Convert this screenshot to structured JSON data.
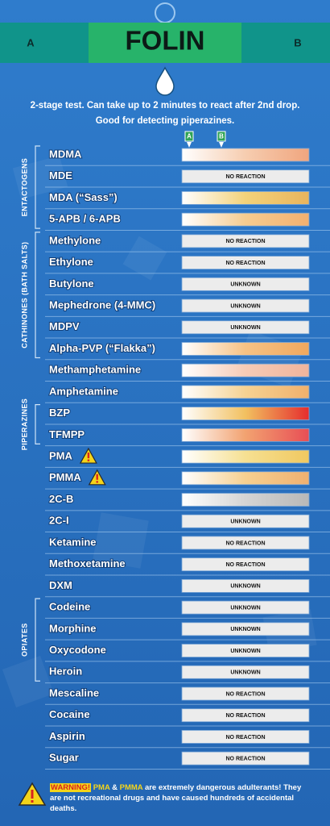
{
  "header": {
    "left": "A",
    "title": "FOLIN",
    "right": "B"
  },
  "instructions": [
    "2-stage test. Can take up to 2 minutes to react after 2nd drop.",
    "Good for detecting piperazines."
  ],
  "columns": [
    "A",
    "B"
  ],
  "sections": [
    {
      "label": "ENTACTOGENS",
      "rows": [
        {
          "name": "MDMA",
          "colors": [
            "#ffffff",
            "#f6cdb0",
            "#f0a57e"
          ]
        },
        {
          "name": "MDE",
          "result": "NO REACTION"
        },
        {
          "name": "MDA (“Sass”)",
          "colors": [
            "#ffffff",
            "#f3d27a",
            "#e9b45c"
          ]
        },
        {
          "name": "5-APB / 6-APB",
          "colors": [
            "#ffffff",
            "#f6cc90",
            "#f2b070"
          ]
        }
      ]
    },
    {
      "label": "CATHINONES (BATH SALTS)",
      "rows": [
        {
          "name": "Methylone",
          "result": "NO REACTION"
        },
        {
          "name": "Ethylone",
          "result": "NO REACTION"
        },
        {
          "name": "Butylone",
          "result": "UNKNOWN"
        },
        {
          "name": "Mephedrone (4-MMC)",
          "result": "UNKNOWN"
        },
        {
          "name": "MDPV",
          "result": "UNKNOWN"
        },
        {
          "name": "Alpha-PVP (“Flakka”)",
          "colors": [
            "#ffffff",
            "#f6c284",
            "#f0a85e"
          ]
        }
      ]
    },
    {
      "rows": [
        {
          "name": "Methamphetamine",
          "colors": [
            "#ffffff",
            "#f6cbb6",
            "#f0b49c"
          ]
        },
        {
          "name": "Amphetamine",
          "colors": [
            "#ffffff",
            "#f6d292",
            "#f0b06c"
          ]
        }
      ]
    },
    {
      "label": "PIPERAZINES",
      "rows": [
        {
          "name": "BZP",
          "colors": [
            "#ffffff",
            "#f2c060",
            "#e52d2d"
          ]
        },
        {
          "name": "TFMPP",
          "colors": [
            "#ffffff",
            "#f2a270",
            "#e84e55"
          ]
        }
      ]
    },
    {
      "rows": [
        {
          "name": "PMA",
          "warning": true,
          "colors": [
            "#ffffff",
            "#f6e092",
            "#f0c860"
          ]
        },
        {
          "name": "PMMA",
          "warning": true,
          "colors": [
            "#ffffff",
            "#f6d090",
            "#f0b070"
          ]
        },
        {
          "name": "2C-B",
          "colors": [
            "#ffffff",
            "#d4d4d4",
            "#b8b8b8"
          ]
        },
        {
          "name": "2C-I",
          "result": "UNKNOWN"
        },
        {
          "name": "Ketamine",
          "result": "NO REACTION"
        },
        {
          "name": "Methoxetamine",
          "result": "NO REACTION"
        },
        {
          "name": "DXM",
          "result": "UNKNOWN"
        }
      ]
    },
    {
      "label": "OPIATES",
      "rows": [
        {
          "name": "Codeine",
          "result": "UNKNOWN"
        },
        {
          "name": "Morphine",
          "result": "UNKNOWN"
        },
        {
          "name": "Oxycodone",
          "result": "UNKNOWN"
        },
        {
          "name": "Heroin",
          "result": "UNKNOWN"
        }
      ]
    },
    {
      "rows": [
        {
          "name": "Mescaline",
          "result": "NO REACTION"
        },
        {
          "name": "Cocaine",
          "result": "NO REACTION"
        },
        {
          "name": "Aspirin",
          "result": "NO REACTION"
        },
        {
          "name": "Sugar",
          "result": "NO REACTION"
        }
      ]
    }
  ],
  "footer": {
    "warning": "WARNING!",
    "drug1": "PMA",
    "joiner": "&",
    "drug2": "PMMA",
    "text": "are extremely dangerous adulterants! They are not recreational drugs and have caused hundreds of accidental deaths."
  }
}
